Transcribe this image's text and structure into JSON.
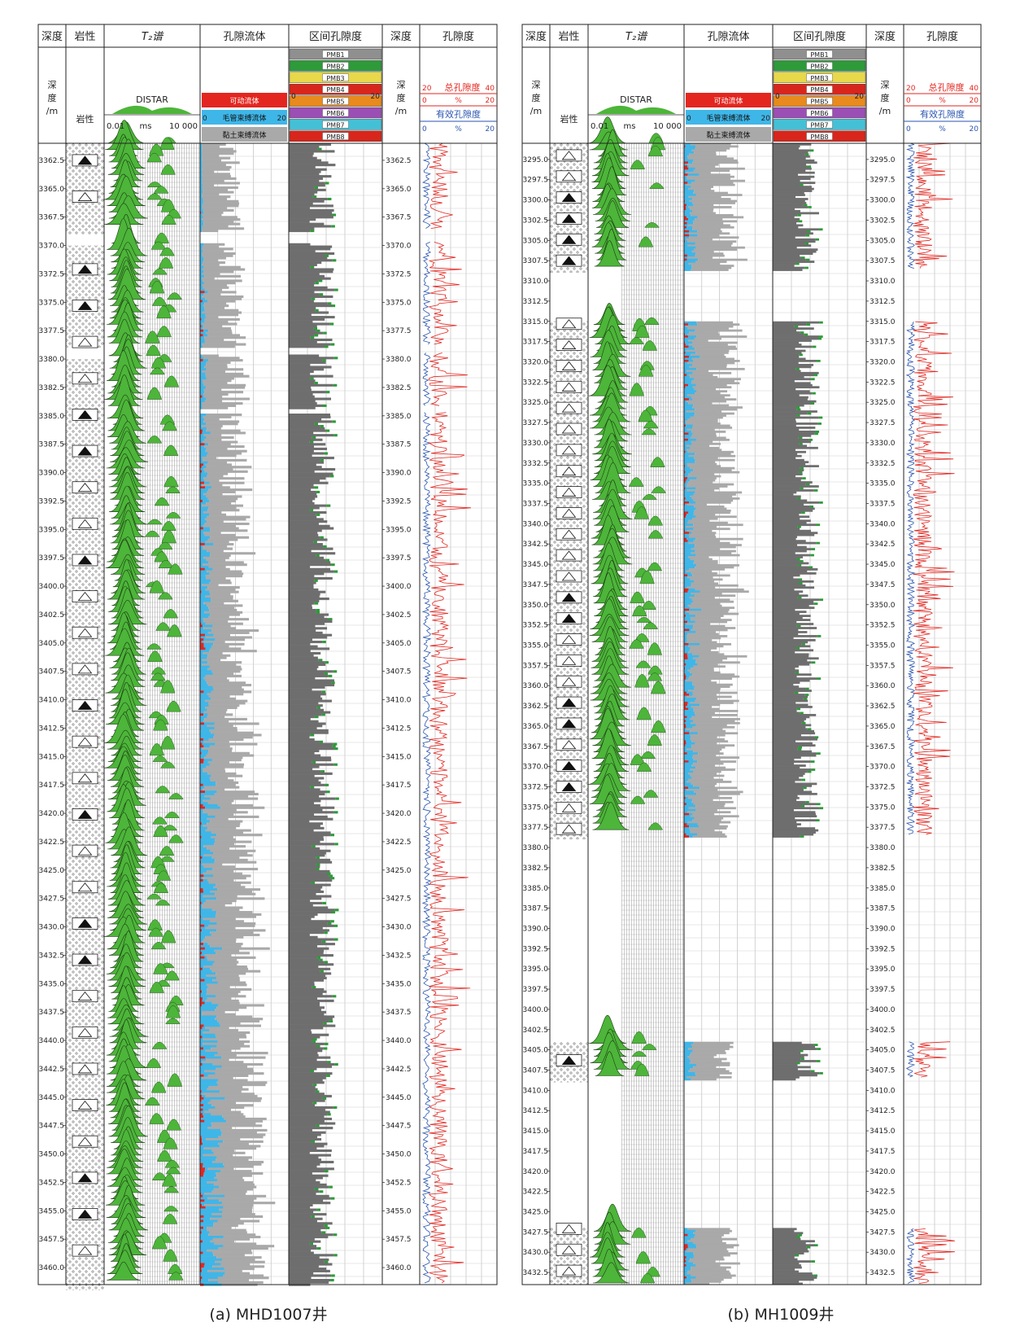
{
  "chart_data": [
    {
      "type": "well-log",
      "caption": "(a) MHD1007井",
      "track_titles": [
        "深度",
        "岩性",
        "T₂谱",
        "孔隙流体",
        "区间孔隙度",
        "深度",
        "孔隙度"
      ],
      "depth_unit_label": [
        "深",
        "度",
        "/m"
      ],
      "lithology_label": "岩性",
      "t2": {
        "curve_name": "DISTAR",
        "min_label": "0.01",
        "unit": "ms",
        "max_label": "10 000"
      },
      "fluid_legend": [
        {
          "name": "可动流体",
          "color": "#e3261f"
        },
        {
          "name": "毛管束缚流体",
          "color": "#3fb6e8"
        },
        {
          "name": "黏土束缚流体",
          "color": "#a9a9a9"
        }
      ],
      "fluid_scale": [
        "0",
        "20"
      ],
      "pmb_bins": [
        {
          "name": "PMB1",
          "color": "#8f8f8f"
        },
        {
          "name": "PMB2",
          "color": "#2e9a3a"
        },
        {
          "name": "PMB3",
          "color": "#e8d84a"
        },
        {
          "name": "PMB4",
          "color": "#d8261c"
        },
        {
          "name": "PMB5",
          "color": "#e88a1d"
        },
        {
          "name": "PMB6",
          "color": "#9b4fb4"
        },
        {
          "name": "PMB7",
          "color": "#44c0d6"
        },
        {
          "name": "PMB8",
          "color": "#d8261c"
        }
      ],
      "pmb_scale": [
        "0",
        "20"
      ],
      "porosity_curves": [
        {
          "name": "总孔隙度",
          "min": "20",
          "max": "40",
          "color": "#e3261f"
        },
        {
          "name": "有效孔隙度",
          "min": "0",
          "max": "20",
          "color": "#2a55b0"
        }
      ],
      "porosity_unit": "%",
      "porosity_unit_row": [
        "0",
        "%",
        "20"
      ],
      "depth_range": [
        3361.0,
        3461.5
      ],
      "depth_labels": [
        "3362.5",
        "3365.0",
        "3367.5",
        "3370.0",
        "3372.5",
        "3375.0",
        "3377.5",
        "3380.0",
        "3382.5",
        "3385.0",
        "3387.5",
        "3390.0",
        "3392.5",
        "3395.0",
        "3397.5",
        "3400.0",
        "3402.5",
        "3405.0",
        "3407.5",
        "3410.0",
        "3412.5",
        "3415.0",
        "3417.5",
        "3420.0",
        "3422.5",
        "3425.0",
        "3427.5",
        "3430.0",
        "3432.5",
        "3435.0",
        "3437.5",
        "3440.0",
        "3442.5",
        "3445.0",
        "3447.5",
        "3450.0",
        "3452.5",
        "3455.0",
        "3457.5",
        "3460.0"
      ],
      "gaps": [
        [
          3368.6,
          3369.6
        ],
        [
          3378.8,
          3379.4
        ],
        [
          3384.2,
          3384.7
        ]
      ],
      "colors": {
        "green": "#4db53a",
        "total": "#e3261f",
        "effective": "#2a55b0",
        "grid": "#b5b5b5"
      }
    },
    {
      "type": "well-log",
      "caption": "(b) MH1009井",
      "track_titles": [
        "深度",
        "岩性",
        "T₂谱",
        "孔隙流体",
        "区间孔隙度",
        "深度",
        "孔隙度"
      ],
      "depth_unit_label": [
        "深",
        "度",
        "/m"
      ],
      "lithology_label": "岩性",
      "t2": {
        "curve_name": "DISTAR",
        "min_label": "0.01",
        "unit": "ms",
        "max_label": "10 000"
      },
      "fluid_legend": [
        {
          "name": "可动流体",
          "color": "#e3261f"
        },
        {
          "name": "毛管束缚流体",
          "color": "#3fb6e8"
        },
        {
          "name": "黏土束缚流体",
          "color": "#a9a9a9"
        }
      ],
      "fluid_scale": [
        "0",
        "20"
      ],
      "pmb_bins": [
        {
          "name": "PMB1",
          "color": "#8f8f8f"
        },
        {
          "name": "PMB2",
          "color": "#2e9a3a"
        },
        {
          "name": "PMB3",
          "color": "#e8d84a"
        },
        {
          "name": "PMB4",
          "color": "#d8261c"
        },
        {
          "name": "PMB5",
          "color": "#e88a1d"
        },
        {
          "name": "PMB6",
          "color": "#9b4fb4"
        },
        {
          "name": "PMB7",
          "color": "#44c0d6"
        },
        {
          "name": "PMB8",
          "color": "#d8261c"
        }
      ],
      "pmb_scale": [
        "0",
        "20"
      ],
      "porosity_curves": [
        {
          "name": "总孔隙度",
          "min": "20",
          "max": "40",
          "color": "#e3261f"
        },
        {
          "name": "有效孔隙度",
          "min": "0",
          "max": "20",
          "color": "#2a55b0"
        }
      ],
      "porosity_unit": "%",
      "porosity_unit_row": [
        "0",
        "%",
        "20"
      ],
      "depth_range": [
        3293.0,
        3434.0
      ],
      "depth_labels": [
        "3295.0",
        "3297.5",
        "3300.0",
        "3302.5",
        "3305.0",
        "3307.5",
        "3310.0",
        "3312.5",
        "3315.0",
        "3317.5",
        "3320.0",
        "3322.5",
        "3325.0",
        "3327.5",
        "3330.0",
        "3332.5",
        "3335.0",
        "3337.5",
        "3340.0",
        "3342.5",
        "3345.0",
        "3347.5",
        "3350.0",
        "3352.5",
        "3355.0",
        "3357.5",
        "3360.0",
        "3362.5",
        "3365.0",
        "3367.5",
        "3370.0",
        "3372.5",
        "3375.0",
        "3377.5",
        "3380.0",
        "3382.5",
        "3385.0",
        "3387.5",
        "3390.0",
        "3392.5",
        "3395.0",
        "3397.5",
        "3400.0",
        "3402.5",
        "3405.0",
        "3407.5",
        "3410.0",
        "3412.5",
        "3415.0",
        "3417.5",
        "3420.0",
        "3422.5",
        "3425.0",
        "3427.5",
        "3430.0",
        "3432.5"
      ],
      "data_intervals": [
        [
          3293.0,
          3308.5
        ],
        [
          3315.0,
          3378.5
        ],
        [
          3404.0,
          3408.5
        ],
        [
          3427.0,
          3434.0
        ]
      ],
      "colors": {
        "green": "#4db53a",
        "total": "#e3261f",
        "effective": "#2a55b0",
        "grid": "#b5b5b5"
      }
    }
  ]
}
